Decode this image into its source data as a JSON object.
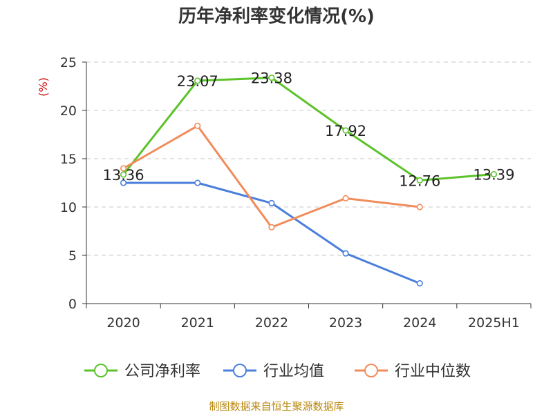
{
  "chart_data": {
    "type": "line",
    "title": "历年净利率变化情况(%)",
    "ylabel": "(%)",
    "xlabel": "",
    "categories": [
      "2020",
      "2021",
      "2022",
      "2023",
      "2024",
      "2025H1"
    ],
    "ylim": [
      0,
      25
    ],
    "yticks": [
      0,
      5,
      10,
      15,
      20,
      25
    ],
    "grid": true,
    "legend_position": "bottom",
    "series": [
      {
        "name": "公司净利率",
        "color": "#5cc22a",
        "values": [
          13.36,
          23.07,
          23.38,
          17.92,
          12.76,
          13.39
        ],
        "show_labels": true
      },
      {
        "name": "行业均值",
        "color": "#4a7fdb",
        "values": [
          12.5,
          12.5,
          10.4,
          5.2,
          2.1,
          null
        ],
        "show_labels": false
      },
      {
        "name": "行业中位数",
        "color": "#f28b5a",
        "values": [
          14.0,
          18.4,
          7.9,
          10.9,
          10.0,
          null
        ],
        "show_labels": false
      }
    ]
  },
  "source": "制图数据来自恒生聚源数据库"
}
